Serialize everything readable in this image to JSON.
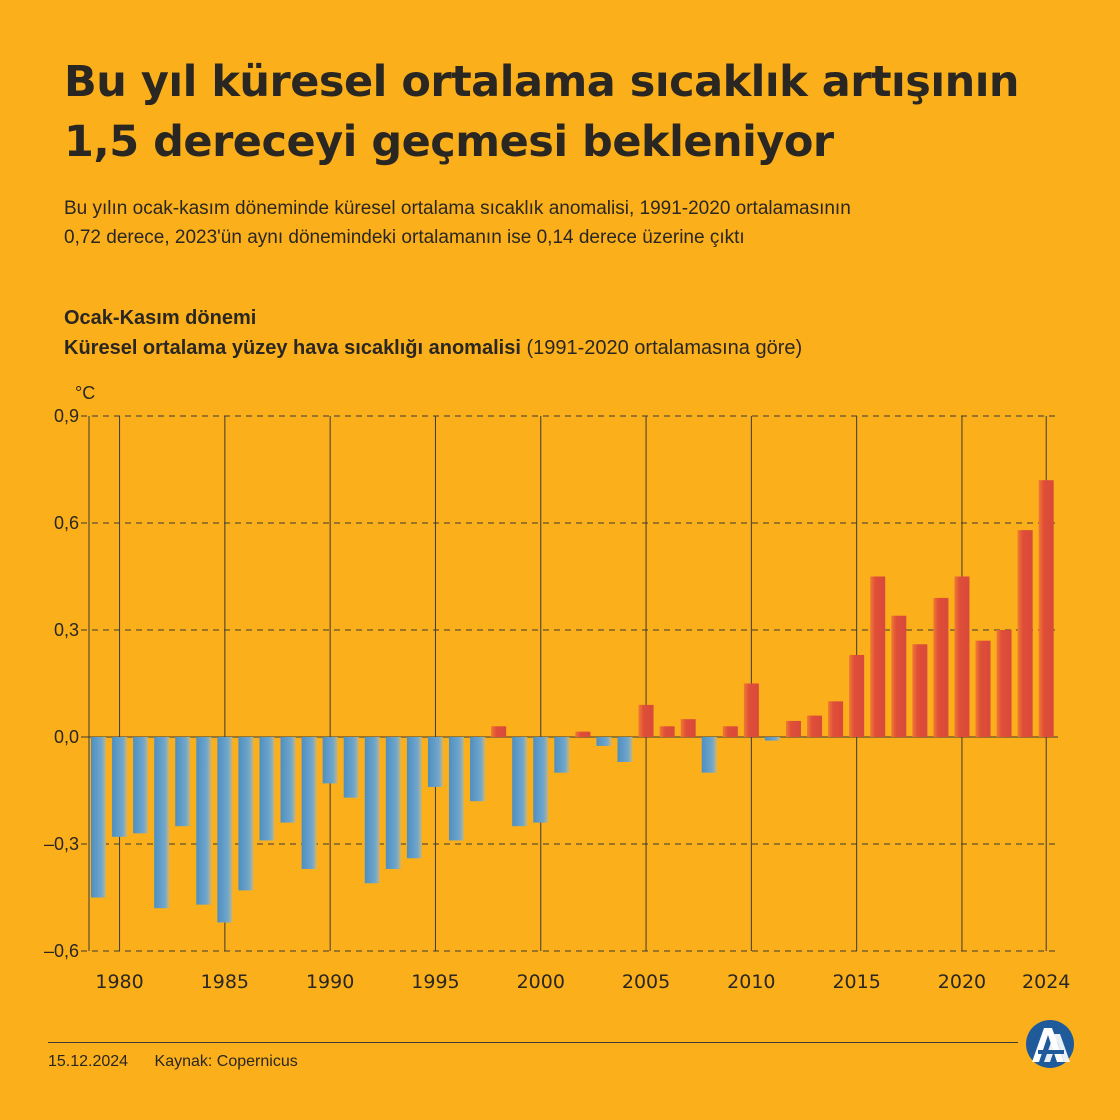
{
  "title_line1": "Bu yıl küresel ortalama sıcaklık artışının",
  "title_line2": "1,5 dereceyi geçmesi bekleniyor",
  "subtitle_line1": "Bu yılın ocak-kasım döneminde küresel ortalama sıcaklık anomalisi, 1991-2020 ortalamasının",
  "subtitle_line2": "0,72 derece, 2023'ün aynı dönemindeki ortalamanın ise 0,14 derece üzerine çıktı",
  "chart_heading": {
    "line1": "Ocak-Kasım dönemi",
    "line2_bold": "Küresel ortalama yüzey hava sıcaklığı anomalisi",
    "line2_rest": " (1991-2020 ortalamasına göre)"
  },
  "footer": {
    "date": "15.12.2024",
    "source": "Kaynak: Copernicus"
  },
  "logo": {
    "text": "AA",
    "name": "aa-logo"
  },
  "colors": {
    "background": "#FBAF1A",
    "negative_bar": "#5B9BC7",
    "positive_bar": "#D9493A",
    "text": "#2a2722"
  },
  "chart_data": {
    "type": "bar",
    "ylabel": "°C",
    "ylim": [
      -0.6,
      0.9
    ],
    "yticks": [
      0.9,
      0.6,
      0.3,
      0.0,
      -0.3,
      -0.6
    ],
    "ytick_labels": [
      "0,9",
      "0,6",
      "0,3",
      "0,0",
      "–0,3",
      "–0,6"
    ],
    "xtick_labels": [
      "1980",
      "1985",
      "1990",
      "1995",
      "2000",
      "2005",
      "2010",
      "2015",
      "2020",
      "2024"
    ],
    "grid": true,
    "categories": [
      1979,
      1980,
      1981,
      1982,
      1983,
      1984,
      1985,
      1986,
      1987,
      1988,
      1989,
      1990,
      1991,
      1992,
      1993,
      1994,
      1995,
      1996,
      1997,
      1998,
      1999,
      2000,
      2001,
      2002,
      2003,
      2004,
      2005,
      2006,
      2007,
      2008,
      2009,
      2010,
      2011,
      2012,
      2013,
      2014,
      2015,
      2016,
      2017,
      2018,
      2019,
      2020,
      2021,
      2022,
      2023,
      2024
    ],
    "values": [
      -0.45,
      -0.28,
      -0.27,
      -0.48,
      -0.25,
      -0.47,
      -0.52,
      -0.43,
      -0.29,
      -0.24,
      -0.37,
      -0.13,
      -0.17,
      -0.41,
      -0.37,
      -0.34,
      -0.14,
      -0.29,
      -0.18,
      0.03,
      -0.25,
      -0.24,
      -0.1,
      0.015,
      -0.025,
      -0.07,
      0.09,
      0.03,
      0.05,
      -0.1,
      0.03,
      0.15,
      -0.01,
      0.045,
      0.06,
      0.1,
      0.23,
      0.45,
      0.34,
      0.26,
      0.39,
      0.45,
      0.27,
      0.3,
      0.58,
      0.72
    ]
  }
}
